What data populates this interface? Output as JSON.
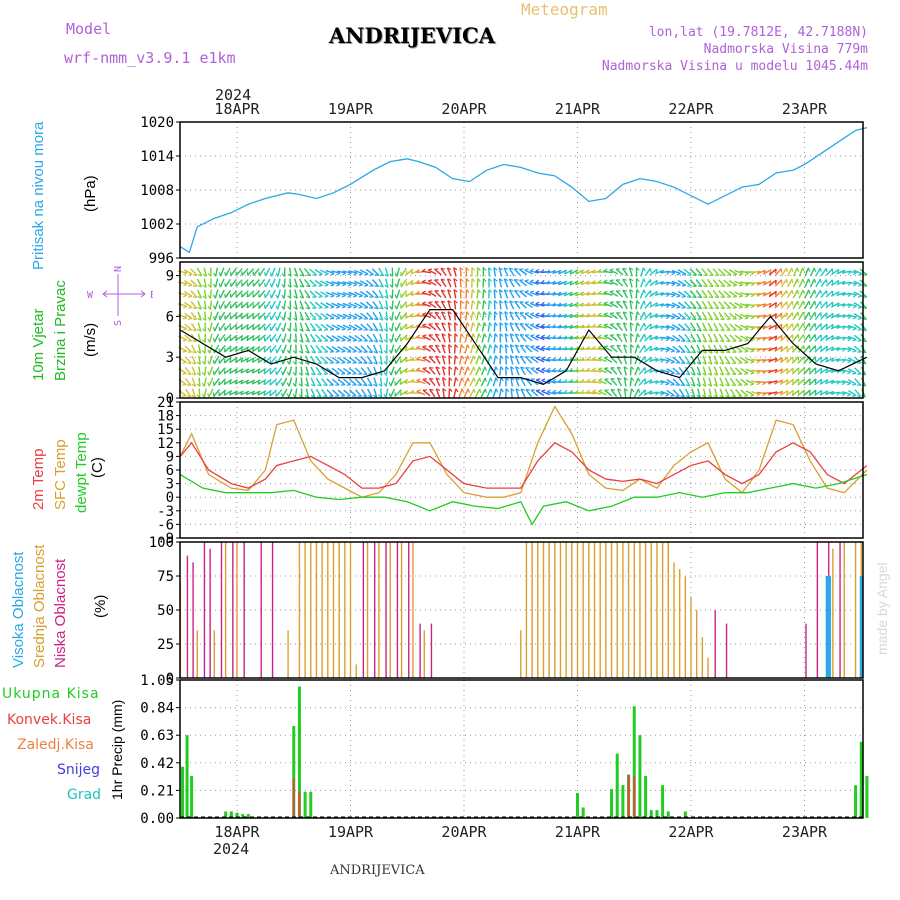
{
  "header": {
    "model_label": "Model",
    "model_name": "wrf-nmm_v3.9.1 e1km",
    "station": "ANDRIJEVICA",
    "product": "Meteogram",
    "lonlat": "lon,lat (19.7812E, 42.7188N)",
    "elevation": "Nadmorska Visina 779m",
    "model_elevation": "Nadmorska Visina u modelu 1045.44m",
    "year_top": "2024",
    "year_bottom": "2024",
    "footer_station": "ANDRIJEVICA",
    "credit": "made by Angel"
  },
  "colors": {
    "pressure": "#2aa8e8",
    "wind_green": "#22bb22",
    "temp_2m": "#e84040",
    "temp_sfc": "#d8a030",
    "dewpoint": "#22cc22",
    "cloud_high": "#2aa8e8",
    "cloud_mid": "#d8a030",
    "cloud_low": "#cc2288",
    "precip_total": "#22cc22",
    "precip_conv": "#e84040",
    "precip_frz": "#f08040",
    "snow": "#4040e0",
    "graupel": "#20c0c0",
    "purple": "#b060d8"
  },
  "panel_labels": {
    "pressure": {
      "name": "Pritisak na nivou mora",
      "unit": "(hPa)"
    },
    "wind": {
      "name1": "10m Vjetar",
      "name2": "Brzina i Pravac",
      "unit": "(m/s)"
    },
    "temp": {
      "t2m": "2m Temp",
      "tsfc": "SFC Temp",
      "dew": "dewpt Temp",
      "unit": "(C)"
    },
    "cloud": {
      "high": "Visoka Oblacnost",
      "mid": "Srednja Oblacnost",
      "low": "Niska Oblacnost",
      "unit": "(%)"
    },
    "precip": {
      "total": "Ukupna Kisa",
      "conv": "Konvek.Kisa",
      "frz": "Zaledj.Kisa",
      "snow": "Snijeg",
      "grad": "Grad",
      "unit": "1hr Precip (mm)"
    }
  },
  "compass": {
    "n": "N",
    "s": "S",
    "w": "W",
    "e": "E"
  },
  "chart_data": [
    {
      "type": "line",
      "title": "Pritisak na nivou mora",
      "ylabel": "(hPa)",
      "x_unit": "days since 17 APR 12 UTC",
      "date_ticks": [
        "18APR",
        "19APR",
        "20APR",
        "21APR",
        "22APR",
        "23APR"
      ],
      "ylim": [
        996,
        1020
      ],
      "yticks": [
        996,
        1002,
        1008,
        1014,
        1020
      ],
      "series": [
        {
          "name": "Pritisak na nivou mora",
          "color": "#2aa8e8",
          "x": [
            0,
            0.08,
            0.15,
            0.3,
            0.45,
            0.6,
            0.75,
            0.85,
            0.95,
            1.05,
            1.2,
            1.35,
            1.5,
            1.7,
            1.85,
            2.0,
            2.1,
            2.25,
            2.4,
            2.55,
            2.7,
            2.85,
            3.0,
            3.15,
            3.3,
            3.45,
            3.6,
            3.75,
            3.9,
            4.05,
            4.2,
            4.35,
            4.5,
            4.65,
            4.8,
            4.95,
            5.1,
            5.25,
            5.4,
            5.5,
            5.65,
            5.8,
            5.95,
            6.05
          ],
          "y": [
            998,
            997,
            1001.5,
            1003,
            1004,
            1005.5,
            1006.5,
            1007,
            1007.5,
            1007.2,
            1006.5,
            1007.5,
            1009,
            1011.5,
            1013,
            1013.5,
            1013,
            1012,
            1010,
            1009.5,
            1011.5,
            1012.5,
            1012,
            1011,
            1010.5,
            1008.5,
            1006,
            1006.5,
            1009,
            1010,
            1009.5,
            1008.5,
            1007,
            1005.5,
            1007,
            1008.5,
            1009,
            1011,
            1011.5,
            1012.5,
            1014.5,
            1016.5,
            1018.5,
            1019
          ]
        }
      ]
    },
    {
      "type": "line",
      "title": "10m Vjetar Brzina i Pravac",
      "ylabel": "(m/s)",
      "ylim": [
        0,
        10
      ],
      "yticks": [
        0,
        3,
        6,
        9
      ],
      "series": [
        {
          "name": "10m Vjetar",
          "color": "#000000",
          "x": [
            0,
            0.2,
            0.4,
            0.6,
            0.8,
            1.0,
            1.2,
            1.4,
            1.6,
            1.8,
            2.0,
            2.2,
            2.4,
            2.6,
            2.8,
            3.0,
            3.2,
            3.4,
            3.6,
            3.8,
            4.0,
            4.2,
            4.4,
            4.6,
            4.8,
            5.0,
            5.2,
            5.4,
            5.6,
            5.8,
            6.05
          ],
          "y": [
            5,
            4,
            3,
            3.5,
            2.5,
            3,
            2.5,
            1.5,
            1.5,
            2,
            4,
            6.5,
            6.5,
            4,
            1.5,
            1.5,
            1,
            2,
            5,
            3,
            3,
            2,
            1.5,
            3.5,
            3.5,
            4,
            6,
            4,
            2.5,
            2,
            3
          ]
        }
      ]
    },
    {
      "type": "line",
      "title": "2m Temp / SFC Temp / dewpt Temp",
      "ylabel": "(C)",
      "ylim": [
        -9,
        21
      ],
      "yticks": [
        -9,
        -6,
        -3,
        0,
        3,
        6,
        9,
        12,
        15,
        18,
        21
      ],
      "series": [
        {
          "name": "2m Temp",
          "color": "#e84040",
          "x": [
            0,
            0.1,
            0.25,
            0.45,
            0.6,
            0.75,
            0.85,
            1.0,
            1.15,
            1.3,
            1.45,
            1.6,
            1.75,
            1.9,
            2.05,
            2.2,
            2.35,
            2.5,
            2.7,
            2.85,
            3.0,
            3.15,
            3.3,
            3.45,
            3.6,
            3.75,
            3.9,
            4.05,
            4.2,
            4.35,
            4.5,
            4.65,
            4.8,
            4.95,
            5.1,
            5.25,
            5.4,
            5.55,
            5.7,
            5.85,
            6.05
          ],
          "y": [
            9,
            12,
            6,
            3,
            2,
            4,
            7,
            8,
            9,
            7,
            5,
            2,
            2,
            3,
            8,
            9,
            6,
            3,
            2,
            2,
            2,
            8,
            12,
            10,
            6,
            4,
            3.5,
            4,
            3,
            5,
            7,
            8,
            5,
            3,
            5,
            10,
            12,
            10,
            5,
            3,
            7
          ]
        },
        {
          "name": "SFC Temp",
          "color": "#d8a030",
          "x": [
            0,
            0.1,
            0.25,
            0.45,
            0.6,
            0.75,
            0.85,
            1.0,
            1.15,
            1.3,
            1.45,
            1.6,
            1.75,
            1.9,
            2.05,
            2.2,
            2.35,
            2.5,
            2.7,
            2.85,
            3.0,
            3.15,
            3.3,
            3.45,
            3.6,
            3.75,
            3.9,
            4.05,
            4.2,
            4.35,
            4.5,
            4.65,
            4.8,
            4.95,
            5.1,
            5.25,
            5.4,
            5.55,
            5.7,
            5.85,
            6.05
          ],
          "y": [
            9,
            14,
            5,
            2,
            1.5,
            6,
            16,
            17,
            8,
            4,
            2,
            0,
            1,
            5,
            12,
            12,
            5,
            1,
            0,
            0,
            1,
            12,
            20,
            14,
            5,
            2,
            1.5,
            4,
            2,
            7,
            10,
            12,
            4,
            1,
            6,
            17,
            16,
            8,
            2,
            1,
            6
          ]
        },
        {
          "name": "dewpt Temp",
          "color": "#22cc22",
          "x": [
            0,
            0.2,
            0.4,
            0.6,
            0.8,
            1.0,
            1.2,
            1.4,
            1.6,
            1.8,
            2.0,
            2.2,
            2.4,
            2.6,
            2.8,
            3.0,
            3.1,
            3.2,
            3.4,
            3.6,
            3.8,
            4.0,
            4.2,
            4.4,
            4.6,
            4.8,
            5.0,
            5.2,
            5.4,
            5.6,
            5.8,
            6.05
          ],
          "y": [
            5,
            2,
            1,
            1,
            1,
            1.5,
            0,
            -0.5,
            0,
            0,
            -1,
            -3,
            -1,
            -2,
            -2.5,
            -1,
            -6,
            -2,
            -1,
            -3,
            -2,
            0,
            0,
            1,
            0,
            1,
            1,
            2,
            3,
            2,
            3,
            5
          ]
        }
      ]
    },
    {
      "type": "bar",
      "title": "Visoka / Srednja / Niska Oblacnost",
      "ylabel": "(%)",
      "ylim": [
        0,
        100
      ],
      "yticks": [
        0,
        25,
        50,
        75,
        100
      ],
      "series": [
        {
          "name": "Niska Oblacnost",
          "color": "#cc2288",
          "x": [
            0.05,
            0.1,
            0.2,
            0.25,
            0.35,
            0.45,
            0.55,
            0.7,
            0.8,
            1.6,
            1.7,
            1.8,
            1.9,
            2.0,
            2.1,
            2.2,
            4.7,
            4.8,
            5.5,
            5.6,
            5.7,
            5.8
          ],
          "y": [
            90,
            85,
            100,
            95,
            100,
            100,
            100,
            100,
            100,
            100,
            100,
            100,
            100,
            100,
            40,
            40,
            50,
            40,
            40,
            100,
            100,
            100
          ]
        },
        {
          "name": "Srednja Oblacnost",
          "color": "#d8a030",
          "x": [
            0.0,
            0.15,
            0.3,
            0.4,
            0.5,
            0.95,
            1.05,
            1.1,
            1.15,
            1.2,
            1.25,
            1.3,
            1.35,
            1.4,
            1.45,
            1.5,
            1.55,
            1.65,
            1.75,
            1.85,
            1.95,
            2.05,
            2.15,
            3.0,
            3.05,
            3.1,
            3.15,
            3.2,
            3.25,
            3.3,
            3.35,
            3.4,
            3.45,
            3.5,
            3.55,
            3.6,
            3.65,
            3.7,
            3.75,
            3.8,
            3.85,
            3.9,
            3.95,
            4.0,
            4.05,
            4.1,
            4.15,
            4.2,
            4.25,
            4.3,
            4.35,
            4.4,
            4.45,
            4.5,
            4.55,
            4.6,
            4.65,
            5.75,
            5.85,
            5.95,
            6.0
          ],
          "y": [
            70,
            35,
            35,
            100,
            100,
            35,
            100,
            100,
            100,
            100,
            100,
            100,
            100,
            100,
            100,
            100,
            10,
            100,
            100,
            100,
            100,
            100,
            35,
            35,
            100,
            100,
            100,
            100,
            100,
            100,
            100,
            100,
            100,
            100,
            100,
            100,
            100,
            100,
            100,
            100,
            100,
            100,
            100,
            100,
            100,
            100,
            100,
            100,
            100,
            100,
            85,
            80,
            75,
            60,
            50,
            30,
            15,
            95,
            100,
            100,
            100
          ]
        },
        {
          "name": "Visoka Oblacnost",
          "color": "#2aa8e8",
          "x": [
            5.7,
            5.72,
            6.0
          ],
          "y": [
            75,
            75,
            75
          ]
        }
      ]
    },
    {
      "type": "bar",
      "title": "1hr Precip",
      "ylabel": "1hr Precip (mm)",
      "ylim": [
        0,
        1.05
      ],
      "yticks": [
        0,
        0.21,
        0.42,
        0.63,
        0.84,
        1.05
      ],
      "series": [
        {
          "name": "Ukupna Kisa",
          "color": "#22cc22",
          "x": [
            0.02,
            0.06,
            0.1,
            0.4,
            0.45,
            0.5,
            0.55,
            0.6,
            1.0,
            1.05,
            1.1,
            1.15,
            3.5,
            3.55,
            3.8,
            3.85,
            3.9,
            3.95,
            4.0,
            4.05,
            4.1,
            4.15,
            4.2,
            4.25,
            4.3,
            4.45,
            5.95,
            6.0,
            6.05
          ],
          "y": [
            0.39,
            0.63,
            0.32,
            0.05,
            0.05,
            0.04,
            0.03,
            0.03,
            0.7,
            1.0,
            0.2,
            0.2,
            0.19,
            0.08,
            0.22,
            0.49,
            0.25,
            0.33,
            0.85,
            0.63,
            0.32,
            0.06,
            0.06,
            0.25,
            0.05,
            0.05,
            0.25,
            0.58,
            0.32
          ]
        },
        {
          "name": "Konvek.Kisa",
          "color": "#e84040",
          "x": [
            1.0,
            1.05,
            3.95,
            4.0
          ],
          "y": [
            0.3,
            0.2,
            0.33,
            0.32
          ]
        },
        {
          "name": "Zaledj.Kisa",
          "color": "#f08040",
          "x": [],
          "y": []
        },
        {
          "name": "Snijeg",
          "color": "#4040e0",
          "x": [],
          "y": []
        },
        {
          "name": "Grad",
          "color": "#20c0c0",
          "x": [],
          "y": []
        }
      ]
    }
  ]
}
